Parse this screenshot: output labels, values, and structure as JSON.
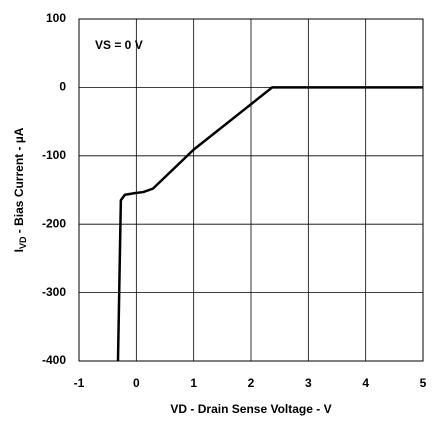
{
  "chart_data": {
    "type": "line",
    "x_label": "VD - Drain Sense Voltage - V",
    "y_label": {
      "parts": [
        "I",
        "VD",
        " - Bias Current - µA"
      ]
    },
    "annotation": "VS = 0 V",
    "series": [
      {
        "color": "#000000",
        "x": [
          -0.32,
          -0.27,
          -0.2,
          -0.06,
          0.12,
          0.29,
          1.0,
          2.37,
          5
        ],
        "values": [
          -400,
          -165,
          -157,
          -155,
          -153,
          -148,
          -91,
          0,
          0
        ]
      }
    ],
    "xlim": [
      -1,
      5
    ],
    "xticks": [
      -1,
      0,
      1,
      2,
      3,
      4,
      5
    ],
    "ylim": [
      -400,
      100
    ],
    "yticks": [
      100,
      0,
      -100,
      -200,
      -300,
      -400
    ],
    "grid": true
  }
}
